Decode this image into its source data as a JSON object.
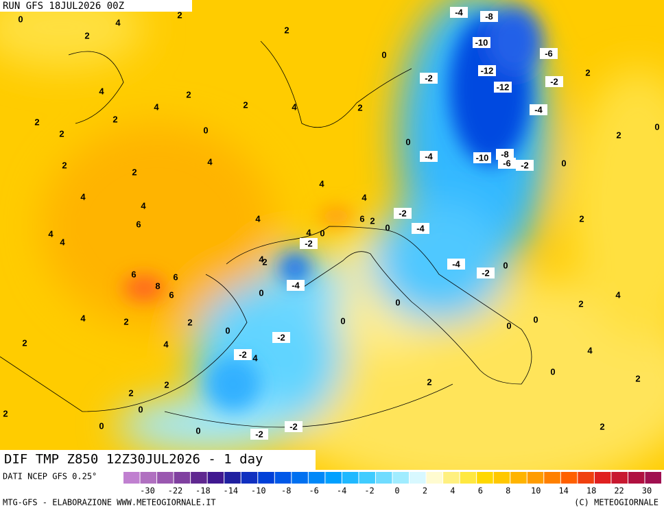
{
  "header": {
    "run": "RUN GFS 18JUL2026 00Z"
  },
  "map": {
    "title": "DIF TMP Z850 12Z30JUL2026 - 1 day",
    "contour_labels": [
      0,
      4,
      2,
      2,
      2,
      0,
      -4,
      -8,
      -10,
      -6,
      2,
      -2,
      -12,
      -12,
      -2,
      4,
      2,
      2,
      4,
      2,
      4,
      2,
      2,
      2,
      0,
      -4,
      0,
      2,
      0,
      -4,
      -10,
      -8,
      -6,
      -2,
      0,
      2,
      2,
      4,
      4,
      4,
      4,
      4,
      -2,
      4,
      6,
      2,
      6,
      4,
      0,
      0,
      -4,
      4,
      4,
      -2,
      2,
      4,
      2,
      -4,
      0,
      6,
      8,
      6,
      6,
      -2,
      -4,
      0,
      0,
      2,
      4,
      4,
      2,
      2,
      0,
      0,
      -2,
      0,
      0,
      2,
      4,
      -2,
      4,
      4,
      0,
      2,
      2,
      2,
      2,
      0,
      2,
      0,
      0,
      -2,
      -2,
      2
    ]
  },
  "footer": {
    "source": "DATI NCEP GFS 0.25°",
    "scale_labels": [
      -30,
      -22,
      -18,
      -14,
      -10,
      -8,
      -6,
      -4,
      -2,
      0,
      2,
      4,
      6,
      8,
      10,
      14,
      18,
      22,
      30
    ],
    "credit": "MTG-GFS - ELABORAZIONE WWW.METEOGIORNALE.IT",
    "copyright": "(C) METEOGIORNALE"
  }
}
